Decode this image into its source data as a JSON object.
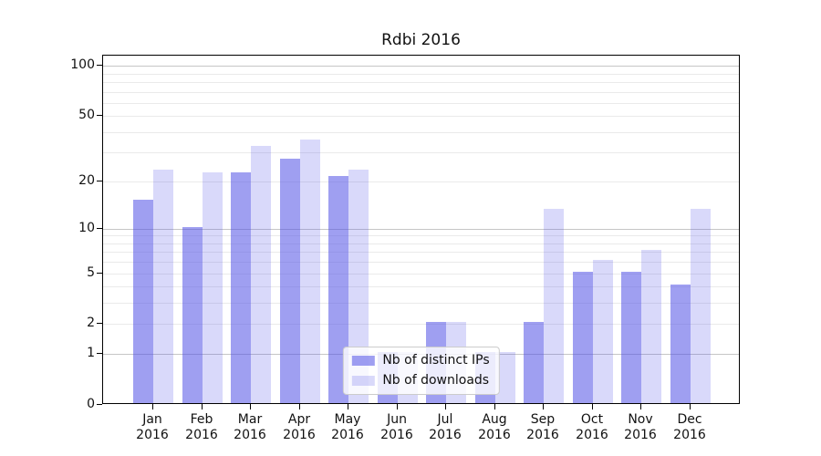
{
  "chart_data": {
    "type": "bar",
    "title": "Rdbi 2016",
    "x_categories": [
      {
        "month": "Jan",
        "year": "2016"
      },
      {
        "month": "Feb",
        "year": "2016"
      },
      {
        "month": "Mar",
        "year": "2016"
      },
      {
        "month": "Apr",
        "year": "2016"
      },
      {
        "month": "May",
        "year": "2016"
      },
      {
        "month": "Jun",
        "year": "2016"
      },
      {
        "month": "Jul",
        "year": "2016"
      },
      {
        "month": "Aug",
        "year": "2016"
      },
      {
        "month": "Sep",
        "year": "2016"
      },
      {
        "month": "Oct",
        "year": "2016"
      },
      {
        "month": "Nov",
        "year": "2016"
      },
      {
        "month": "Dec",
        "year": "2016"
      }
    ],
    "series": [
      {
        "name": "Nb of distinct IPs",
        "color": "rgba(80,80,230,0.55)",
        "values": [
          15,
          10,
          22,
          27,
          21,
          1,
          2,
          1,
          2,
          5,
          5,
          4
        ]
      },
      {
        "name": "Nb of downloads",
        "color": "rgba(80,80,230,0.22)",
        "values": [
          23,
          22,
          32,
          35,
          23,
          1,
          2,
          1,
          13,
          6,
          7,
          13
        ]
      }
    ],
    "y_axis": {
      "scale": "log1p",
      "tick_labels": [
        0,
        1,
        2,
        5,
        10,
        20,
        50,
        100
      ],
      "minor_gridlines": [
        3,
        4,
        6,
        7,
        8,
        9,
        30,
        40,
        60,
        70,
        80,
        90
      ],
      "emphasized_gridlines": [
        1,
        10,
        100
      ],
      "display_max": 115
    },
    "legend_position": "lower center",
    "grid": true,
    "colors": {
      "grid_minor": "#eaeaea",
      "grid_major": "#c6c6c6",
      "spine": "#000000",
      "text": "#111111",
      "background": "#ffffff"
    }
  }
}
